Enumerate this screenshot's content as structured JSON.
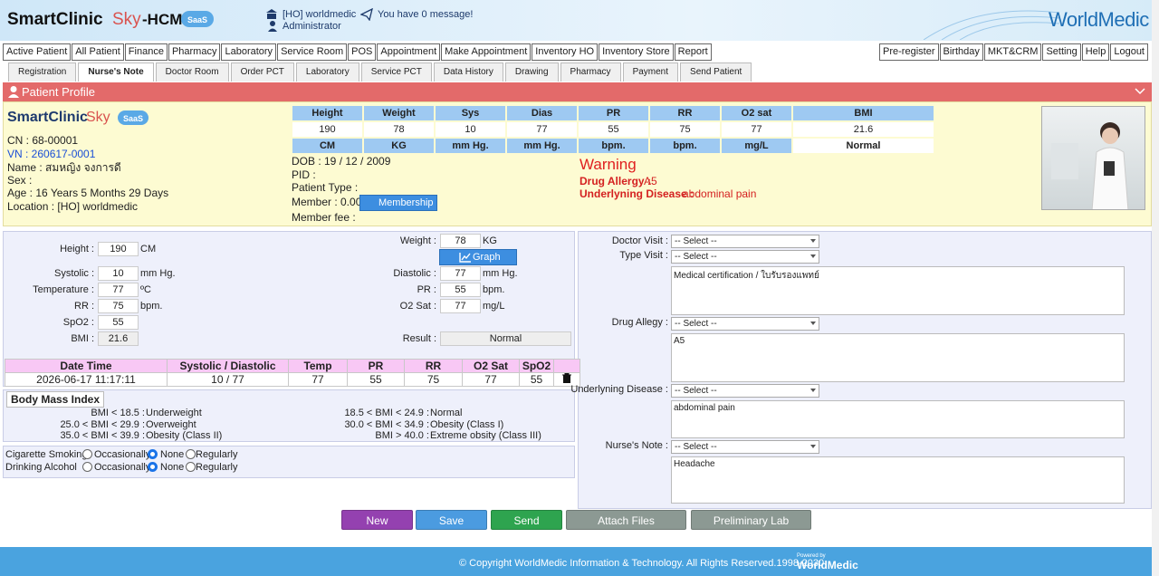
{
  "header": {
    "brand": "SmartClinic",
    "brand_sky": "Sky",
    "brand_suffix": "-HCMS",
    "saas": "SaaS",
    "branch": "[HO] worldmedic",
    "user": "Administrator",
    "message": "You have 0 message!",
    "logo": "WorldMedic"
  },
  "menu_left": [
    "Active Patient",
    "All Patient",
    "Finance",
    "Pharmacy",
    "Laboratory",
    "Service Room",
    "POS",
    "Appointment",
    "Make Appointment",
    "Inventory HO",
    "Inventory Store",
    "Report"
  ],
  "menu_right": [
    "Pre-register",
    "Birthday",
    "MKT&CRM",
    "Setting",
    "Help",
    "Logout"
  ],
  "tabs": [
    "Registration",
    "Nurse's Note",
    "Doctor Room",
    "Order PCT",
    "Laboratory",
    "Service PCT",
    "Data History",
    "Drawing",
    "Pharmacy",
    "Payment",
    "Send Patient"
  ],
  "active_tab_index": 1,
  "profile": {
    "title": "Patient Profile",
    "cn": "CN : 68-00001",
    "vn": "VN : 260617-0001",
    "name": "Name : สมหญิง จงการดี",
    "sex": "Sex :",
    "age": "Age : 16 Years 5 Months 29 Days",
    "location": "Location : [HO] worldmedic",
    "dob": "DOB : 19 / 12 / 2009",
    "pid": "PID :",
    "patient_type": "Patient Type :",
    "member": "Member : 0.00",
    "membership": "Membership",
    "member_fee": "Member fee :",
    "warning": "Warning",
    "drug_allergy_label": "Drug Allergy :",
    "drug_allergy": "A5",
    "underlying_label": "Underlyning Disease :",
    "underlying": "abdominal pain"
  },
  "vitals_summary": {
    "headers": [
      "Height",
      "Weight",
      "Sys",
      "Dias",
      "PR",
      "RR",
      "O2 sat",
      "BMI"
    ],
    "values": [
      "190",
      "78",
      "10",
      "77",
      "55",
      "75",
      "77",
      "21.6"
    ],
    "units": [
      "CM",
      "KG",
      "mm Hg.",
      "mm Hg.",
      "bpm.",
      "bpm.",
      "mg/L",
      "Normal"
    ]
  },
  "vitals_form": {
    "fields": [
      {
        "label": "Height :",
        "value": "190",
        "unit": "CM"
      },
      {
        "label": "Systolic :",
        "value": "10",
        "unit": "mm Hg."
      },
      {
        "label": "Temperature :",
        "value": "77",
        "unit": "ºC"
      },
      {
        "label": "RR :",
        "value": "75",
        "unit": "bpm."
      },
      {
        "label": "SpO2 :",
        "value": "55"
      },
      {
        "label": "BMI :",
        "value": "21.6"
      },
      {
        "label": "Weight :",
        "value": "78",
        "unit": "KG"
      },
      {
        "label": "Diastolic :",
        "value": "77",
        "unit": "mm Hg."
      },
      {
        "label": "PR :",
        "value": "55",
        "unit": "bpm."
      },
      {
        "label": "O2 Sat :",
        "value": "77",
        "unit": "mg/L"
      },
      {
        "label": "Result :",
        "value": "Normal"
      }
    ],
    "graph": "Graph"
  },
  "history": {
    "headers": [
      "Date Time",
      "Systolic / Diastolic",
      "Temp",
      "PR",
      "RR",
      "O2 Sat",
      "SpO2"
    ],
    "rows": [
      [
        "2026-06-17 11:17:11",
        "10 / 77",
        "77",
        "55",
        "75",
        "77",
        "55"
      ]
    ]
  },
  "bmi_index": {
    "title": "Body Mass Index",
    "items": [
      {
        "range": "BMI < 18.5 :",
        "label": "Underweight"
      },
      {
        "range": "18.5 < BMI < 24.9 :",
        "label": "Normal"
      },
      {
        "range": "25.0 < BMI < 29.9 :",
        "label": "Overweight"
      },
      {
        "range": "30.0 < BMI < 34.9 :",
        "label": "Obesity (Class I)"
      },
      {
        "range": "35.0 < BMI < 39.9 :",
        "label": "Obesity (Class II)"
      },
      {
        "range": "BMI > 40.0 :",
        "label": "Extreme obsity (Class III)"
      }
    ]
  },
  "habits": [
    {
      "label": "Cigarette Smoking",
      "options": [
        "Occasionally",
        "None",
        "Regularly"
      ],
      "selected_index": 1
    },
    {
      "label": "Drinking Alcohol",
      "options": [
        "Occasionally",
        "None",
        "Regularly"
      ],
      "selected_index": 1
    }
  ],
  "visit_form": {
    "fields": [
      {
        "label": "Doctor Visit :",
        "select": "-- Select --"
      },
      {
        "label": "Type Visit :",
        "select": "-- Select --",
        "text": "Medical certification / ใบรับรองแพทย์"
      },
      {
        "label": "Drug Allegy :",
        "select": "-- Select --",
        "text": "A5"
      },
      {
        "label": "Underlyning Disease :",
        "select": "-- Select --",
        "text": "abdominal pain"
      },
      {
        "label": "Nurse's Note :",
        "select": "-- Select --",
        "text": "Headache"
      }
    ]
  },
  "buttons": [
    "New",
    "Save",
    "Send",
    "Attach Files",
    "Preliminary Lab"
  ],
  "footer": {
    "copyright": "© Copyright WorldMedic Information & Technology. All Rights Reserved.1998-2030",
    "powered_by": "Powered by",
    "brand": "WorldMedic"
  }
}
